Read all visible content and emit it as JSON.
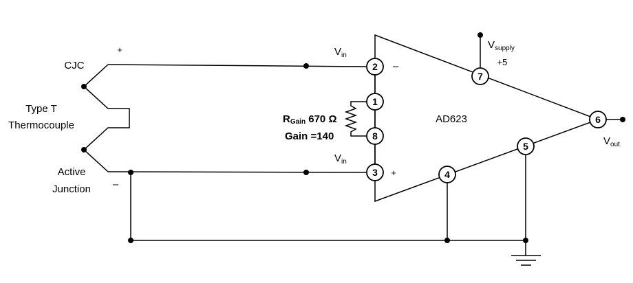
{
  "thermocouple": {
    "cjc_label": "CJC",
    "type_line1": "Type T",
    "type_line2": "Thermocouple",
    "active_line1": "Active",
    "active_line2": "Junction",
    "plus_sign": "+",
    "minus_sign": "–"
  },
  "amplifier": {
    "name": "AD623",
    "inverting_sign": "–",
    "noninverting_sign": "+"
  },
  "labels": {
    "vin_main": "V",
    "vin_sub": "in",
    "vsupply_main": "V",
    "vsupply_sub": "supply",
    "supply_value": "+5",
    "vout_main": "V",
    "vout_sub": "out",
    "rgain_main": "R",
    "rgain_sub": "Gain",
    "rgain_value": " 670 Ω",
    "gain": "Gain =140"
  },
  "pins": [
    {
      "id": "pin-2",
      "number": "2"
    },
    {
      "id": "pin-1",
      "number": "1"
    },
    {
      "id": "pin-8",
      "number": "8"
    },
    {
      "id": "pin-3",
      "number": "3"
    },
    {
      "id": "pin-7",
      "number": "7"
    },
    {
      "id": "pin-6",
      "number": "6"
    },
    {
      "id": "pin-5",
      "number": "5"
    },
    {
      "id": "pin-4",
      "number": "4"
    }
  ]
}
